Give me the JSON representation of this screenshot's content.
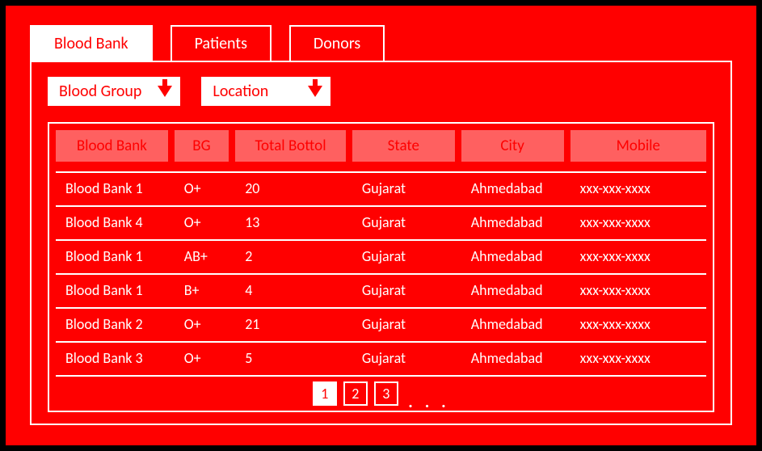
{
  "colors": {
    "primary_red": "#ff0000",
    "header_fill": "#ff6060",
    "white": "#ffffff",
    "frame_border": "#000000"
  },
  "tabs": [
    {
      "label": "Blood Bank",
      "active": true
    },
    {
      "label": "Patients",
      "active": false
    },
    {
      "label": "Donors",
      "active": false
    }
  ],
  "filters": [
    {
      "label": "Blood Group"
    },
    {
      "label": "Location"
    }
  ],
  "table": {
    "columns": [
      {
        "label": "Blood Bank",
        "key": "bank",
        "width": 140
      },
      {
        "label": "BG",
        "key": "bg",
        "width": 68
      },
      {
        "label": "Total Bottol",
        "key": "total",
        "width": 138
      },
      {
        "label": "State",
        "key": "state",
        "width": 128
      },
      {
        "label": "City",
        "key": "city",
        "width": 128
      },
      {
        "label": "Mobile",
        "key": "mobile",
        "width": 170
      }
    ],
    "rows": [
      {
        "bank": "Blood Bank 1",
        "bg": "O+",
        "total": "20",
        "state": "Gujarat",
        "city": "Ahmedabad",
        "mobile": "xxx-xxx-xxxx"
      },
      {
        "bank": "Blood Bank 4",
        "bg": "O+",
        "total": "13",
        "state": "Gujarat",
        "city": "Ahmedabad",
        "mobile": "xxx-xxx-xxxx"
      },
      {
        "bank": "Blood Bank 1",
        "bg": "AB+",
        "total": "2",
        "state": "Gujarat",
        "city": "Ahmedabad",
        "mobile": "xxx-xxx-xxxx"
      },
      {
        "bank": "Blood Bank 1",
        "bg": "B+",
        "total": "4",
        "state": "Gujarat",
        "city": "Ahmedabad",
        "mobile": "xxx-xxx-xxxx"
      },
      {
        "bank": "Blood Bank 2",
        "bg": "O+",
        "total": "21",
        "state": "Gujarat",
        "city": "Ahmedabad",
        "mobile": "xxx-xxx-xxxx"
      },
      {
        "bank": "Blood Bank 3",
        "bg": "O+",
        "total": "5",
        "state": "Gujarat",
        "city": "Ahmedabad",
        "mobile": "xxx-xxx-xxxx"
      }
    ]
  },
  "pagination": {
    "pages": [
      "1",
      "2",
      "3"
    ],
    "active_index": 0,
    "ellipsis": ". . ."
  }
}
